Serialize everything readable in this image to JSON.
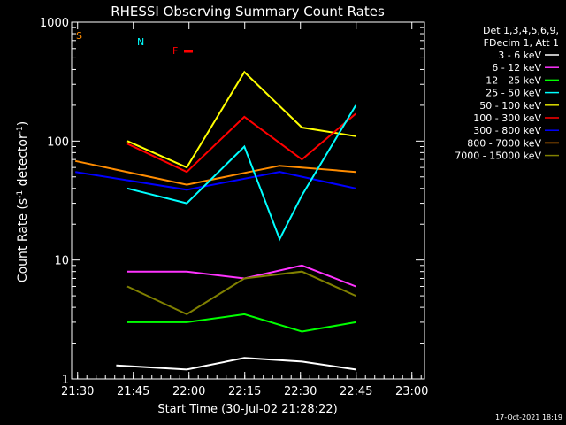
{
  "chart_data": {
    "type": "line",
    "title": "RHESSI Observing Summary Count Rates",
    "xlabel": "Start Time (30-Jul-02 21:28:22)",
    "ylabel": "Count Rate (s⁻¹ detector⁻¹)",
    "ylabel_parts": {
      "base": "Count Rate (s",
      "sup1": "-1",
      "mid": " detector",
      "sup2": "-1",
      "end": ")"
    },
    "footer": "17-Oct-2021 18:19",
    "y_scale": "log",
    "ylim": [
      1,
      1000
    ],
    "xlim_minutes": [
      0,
      95
    ],
    "x_ticks": [
      {
        "label": "21:30",
        "t": 1.6
      },
      {
        "label": "21:45",
        "t": 16.6
      },
      {
        "label": "22:00",
        "t": 31.6
      },
      {
        "label": "22:15",
        "t": 46.6
      },
      {
        "label": "22:30",
        "t": 61.6
      },
      {
        "label": "22:45",
        "t": 76.6
      },
      {
        "label": "23:00",
        "t": 91.6
      }
    ],
    "y_ticks": [
      {
        "label": "1",
        "value": 1
      },
      {
        "label": "10",
        "value": 10
      },
      {
        "label": "100",
        "value": 100
      },
      {
        "label": "1000",
        "value": 1000
      }
    ],
    "legend": {
      "header": [
        "Det 1,3,4,5,6,9,",
        "FDecim 1, Att 1"
      ],
      "entries": [
        {
          "label": "3 - 6 keV",
          "color": "#ffffff"
        },
        {
          "label": "6 - 12 keV",
          "color": "#ff33ff"
        },
        {
          "label": "12 - 25 keV",
          "color": "#00ff00"
        },
        {
          "label": "25 - 50 keV",
          "color": "#00ffff"
        },
        {
          "label": "50 - 100 keV",
          "color": "#dddd00"
        },
        {
          "label": "100 - 300 keV",
          "color": "#ff0000"
        },
        {
          "label": "300 - 800 keV",
          "color": "#0000ff"
        },
        {
          "label": "800 - 7000 keV",
          "color": "#ff8c00"
        },
        {
          "label": "7000 - 15000 keV",
          "color": "#808000"
        }
      ]
    },
    "flag_labels": {
      "S": "S",
      "N": "N",
      "F": "F"
    },
    "series": [
      {
        "color": "#ffff00",
        "times": [
          15,
          31,
          46.5,
          62,
          76.5
        ],
        "values": [
          100,
          60,
          380,
          130,
          110
        ]
      },
      {
        "color": "#ff0000",
        "times": [
          15,
          31,
          46.5,
          62,
          76.5
        ],
        "values": [
          95,
          55,
          160,
          70,
          170
        ]
      },
      {
        "color": "#ff8c00",
        "times": [
          1,
          31,
          56,
          76.5
        ],
        "values": [
          68,
          43,
          62,
          55
        ]
      },
      {
        "color": "#0000ff",
        "times": [
          1,
          31,
          56,
          76.5
        ],
        "values": [
          55,
          39,
          55,
          40
        ]
      },
      {
        "color": "#00ffff",
        "times": [
          15,
          31,
          46.5,
          56,
          62,
          76.5
        ],
        "values": [
          40,
          30,
          90,
          15,
          35,
          200
        ]
      },
      {
        "color": "#ff33ff",
        "times": [
          15,
          31,
          46.5,
          62,
          76.5
        ],
        "values": [
          8,
          8,
          7,
          9,
          6
        ]
      },
      {
        "color": "#808000",
        "times": [
          15,
          31,
          46.5,
          62,
          76.5
        ],
        "values": [
          6,
          3.5,
          7,
          8,
          5
        ]
      },
      {
        "color": "#00ff00",
        "times": [
          15,
          31,
          46.5,
          62,
          76.5
        ],
        "values": [
          3,
          3,
          3.5,
          2.5,
          3
        ]
      },
      {
        "color": "#ffffff",
        "times": [
          12,
          31,
          46.5,
          62,
          76.5
        ],
        "values": [
          1.3,
          1.2,
          1.5,
          1.4,
          1.2
        ]
      }
    ]
  }
}
